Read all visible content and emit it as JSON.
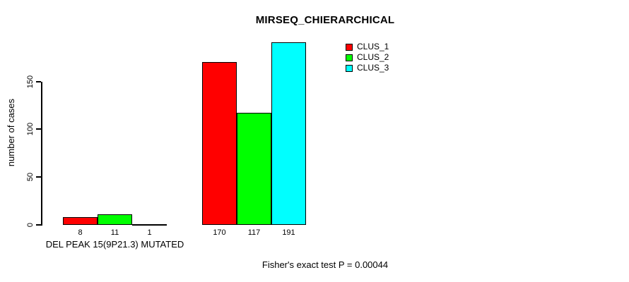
{
  "chart_data": {
    "type": "bar",
    "title": "MIRSEQ_CHIERARCHICAL",
    "xlabel": "",
    "ylabel": "number of cases",
    "yticks": [
      0,
      50,
      100,
      150
    ],
    "ylim": [
      0,
      195
    ],
    "grid": false,
    "legend_position": "top-right",
    "series": [
      {
        "name": "CLUS_1",
        "color": "#FF0000"
      },
      {
        "name": "CLUS_2",
        "color": "#00FF00"
      },
      {
        "name": "CLUS_3",
        "color": "#00FFFF"
      }
    ],
    "groups": [
      {
        "label": "DEL PEAK 15(9P21.3) MUTATED",
        "values": [
          8,
          11,
          1
        ]
      },
      {
        "label": "",
        "values": [
          170,
          117,
          191
        ]
      }
    ],
    "bar_value_labels_shown": true,
    "annotation": "Fisher's exact test P = 0.00044"
  },
  "colors": {
    "background": "#FFFFFF",
    "axis": "#000000",
    "text": "#000000"
  }
}
